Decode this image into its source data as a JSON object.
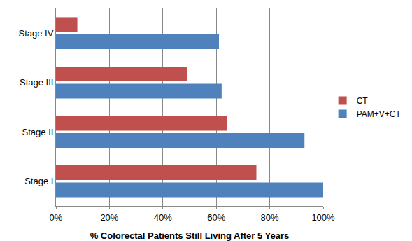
{
  "chart_data": {
    "type": "bar",
    "orientation": "horizontal",
    "x_label": "% Colorectal Patients Still Living After 5 Years",
    "categories": [
      "Stage I",
      "Stage II",
      "Stage III",
      "Stage IV"
    ],
    "series": [
      {
        "name": "PAM+V+CT",
        "color": "#4F81BD",
        "values": [
          100,
          93,
          62,
          61
        ]
      },
      {
        "name": "CT",
        "color": "#C0504D",
        "values": [
          75,
          64,
          49,
          8
        ]
      }
    ],
    "xlim": [
      0,
      100
    ],
    "xticks": [
      {
        "value": 0,
        "label": "0%"
      },
      {
        "value": 20,
        "label": "20%"
      },
      {
        "value": 40,
        "label": "40%"
      },
      {
        "value": 60,
        "label": "60%"
      },
      {
        "value": 80,
        "label": "80%"
      },
      {
        "value": 100,
        "label": "100%"
      }
    ],
    "grid": true,
    "legend": "right"
  }
}
